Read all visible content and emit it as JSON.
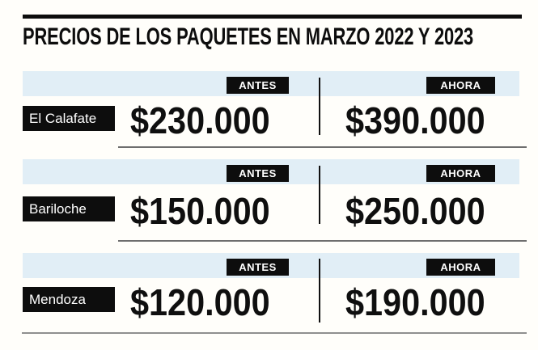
{
  "header": {
    "title": "PRECIOS DE LOS PAQUETES EN MARZO 2022 Y 2023"
  },
  "rows": [
    {
      "destination": "El Calafate",
      "antes_label": "ANTES",
      "antes_value": "$230.000",
      "ahora_label": "AHORA",
      "ahora_value": "$390.000"
    },
    {
      "destination": "Bariloche",
      "antes_label": "ANTES",
      "antes_value": "$150.000",
      "ahora_label": "AHORA",
      "ahora_value": "$250.000"
    },
    {
      "destination": "Mendoza",
      "antes_label": "ANTES",
      "antes_value": "$120.000",
      "ahora_label": "AHORA",
      "ahora_value": "$190.000"
    }
  ],
  "chart_data": {
    "type": "table",
    "title": "PRECIOS DE LOS PAQUETES EN MARZO 2022 Y 2023",
    "categories": [
      "El Calafate",
      "Bariloche",
      "Mendoza"
    ],
    "series": [
      {
        "name": "ANTES",
        "values": [
          230000,
          150000,
          120000
        ]
      },
      {
        "name": "AHORA",
        "values": [
          390000,
          250000,
          190000
        ]
      }
    ],
    "value_display": [
      [
        "$230.000",
        "$390.000"
      ],
      [
        "$150.000",
        "$250.000"
      ],
      [
        "$120.000",
        "$190.000"
      ]
    ]
  },
  "colors": {
    "band_blue": "#e1eef6",
    "badge_black": "#0d0d0d",
    "row_underline": "#6e6e6e",
    "bottom_line": "#8f8f8f",
    "background": "#fffefa"
  }
}
